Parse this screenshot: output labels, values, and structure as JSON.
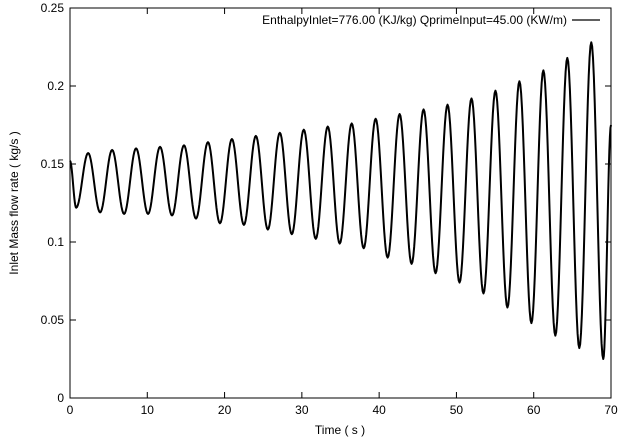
{
  "chart_data": {
    "type": "line",
    "title": "",
    "xlabel": "Time ( s )",
    "ylabel": "Inlet Mass flow rate ( kg/s )",
    "xlim": [
      0,
      70
    ],
    "ylim": [
      0,
      0.25
    ],
    "x_ticks": [
      "0",
      "10",
      "20",
      "30",
      "40",
      "50",
      "60",
      "70"
    ],
    "y_ticks": [
      "0",
      "0.05",
      "0.1",
      "0.15",
      "0.2",
      "0.25"
    ],
    "grid": false,
    "legend_position": "top-right",
    "series": [
      {
        "name": "EnthalpyInlet=776.00 (KJ/kg)  QprimeInput=45.00 (KW/m)",
        "color": "#000000",
        "x": [
          0,
          0.8,
          2.35,
          3.9,
          5.45,
          7.0,
          8.55,
          10.1,
          11.65,
          13.2,
          14.75,
          16.3,
          17.85,
          19.4,
          20.95,
          22.5,
          24.05,
          25.6,
          27.15,
          28.7,
          30.25,
          31.8,
          33.35,
          34.9,
          36.45,
          38.0,
          39.55,
          41.1,
          42.65,
          44.2,
          45.75,
          47.3,
          48.85,
          50.4,
          51.95,
          53.5,
          55.05,
          56.6,
          58.15,
          59.7,
          61.25,
          62.8,
          64.35,
          65.9,
          67.45,
          69.0,
          70.0
        ],
        "y": [
          0.152,
          0.122,
          0.157,
          0.119,
          0.159,
          0.118,
          0.16,
          0.118,
          0.161,
          0.117,
          0.162,
          0.115,
          0.164,
          0.112,
          0.166,
          0.111,
          0.168,
          0.108,
          0.17,
          0.105,
          0.172,
          0.102,
          0.174,
          0.099,
          0.176,
          0.096,
          0.179,
          0.09,
          0.182,
          0.086,
          0.185,
          0.08,
          0.188,
          0.074,
          0.192,
          0.067,
          0.197,
          0.058,
          0.203,
          0.048,
          0.21,
          0.04,
          0.218,
          0.032,
          0.228,
          0.025,
          0.175
        ]
      }
    ]
  }
}
